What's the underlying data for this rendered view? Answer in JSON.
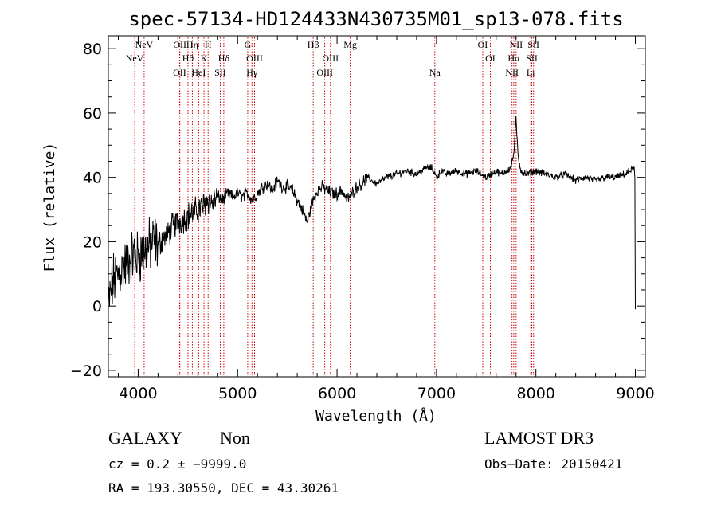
{
  "chart_data": {
    "type": "line",
    "title": "spec-57134-HD124433N430735M01_sp13-078.fits",
    "xlabel": "Wavelength (Å)",
    "ylabel": "Flux (relative)",
    "xlim": [
      3700,
      9100
    ],
    "ylim": [
      -22,
      84
    ],
    "x_ticks": [
      4000,
      5000,
      6000,
      7000,
      8000,
      9000
    ],
    "x_tick_labels": [
      "4000",
      "5000",
      "6000",
      "7000",
      "8000",
      "9000"
    ],
    "y_ticks": [
      -20,
      0,
      20,
      40,
      60,
      80
    ],
    "y_tick_labels": [
      "−20",
      "0",
      "20",
      "40",
      "60",
      "80"
    ],
    "series": [
      {
        "name": "spectrum",
        "x": [
          3700,
          3750,
          3800,
          3850,
          3900,
          3950,
          4000,
          4050,
          4100,
          4150,
          4200,
          4250,
          4300,
          4350,
          4400,
          4450,
          4500,
          4550,
          4600,
          4650,
          4700,
          4750,
          4800,
          4850,
          4900,
          4950,
          5000,
          5050,
          5100,
          5150,
          5200,
          5250,
          5300,
          5350,
          5400,
          5450,
          5500,
          5550,
          5600,
          5650,
          5700,
          5750,
          5800,
          5850,
          5900,
          5950,
          6000,
          6050,
          6100,
          6150,
          6200,
          6250,
          6300,
          6350,
          6400,
          6500,
          6600,
          6700,
          6800,
          6900,
          6950,
          7000,
          7050,
          7100,
          7200,
          7300,
          7400,
          7500,
          7550,
          7600,
          7650,
          7700,
          7750,
          7780,
          7800,
          7820,
          7850,
          7900,
          8000,
          8100,
          8200,
          8300,
          8400,
          8500,
          8600,
          8700,
          8800,
          8900,
          8950,
          8990,
          9000
        ],
        "values": [
          0,
          8,
          10,
          12,
          14,
          16,
          15,
          17,
          18,
          20,
          19,
          21,
          22,
          25,
          26,
          27,
          28,
          29,
          30,
          31,
          33,
          32,
          34,
          33,
          35,
          34,
          35,
          34,
          35,
          33,
          35,
          37,
          38,
          36,
          39,
          37,
          37,
          36,
          33,
          30,
          26,
          32,
          36,
          37,
          36,
          35,
          35,
          36,
          33,
          35,
          37,
          38,
          40,
          39,
          38,
          40,
          41,
          42,
          41,
          43,
          43,
          40,
          42,
          41,
          42,
          41,
          42,
          40,
          41,
          42,
          41,
          42,
          43,
          48,
          58,
          47,
          42,
          41,
          42,
          41,
          40,
          41,
          39,
          40,
          39,
          40,
          40,
          41,
          42,
          43,
          -1
        ]
      }
    ],
    "emission_lines": [
      {
        "label": "NeV",
        "wl": 3346,
        "row": 1
      },
      {
        "label": "NeV",
        "wl": 3426,
        "row": 0
      },
      {
        "label": "OII",
        "wl": 3727,
        "row": 2
      },
      {
        "label": "OII",
        "wl": 3729,
        "row": 0
      },
      {
        "label": "Hθ",
        "wl": 3798,
        "row": 1
      },
      {
        "label": "Hη",
        "wl": 3835,
        "row": 0
      },
      {
        "label": "HeI",
        "wl": 3889,
        "row": 2
      },
      {
        "label": "K",
        "wl": 3934,
        "row": 1
      },
      {
        "label": "H",
        "wl": 3969,
        "row": 0
      },
      {
        "label": "SII",
        "wl": 4072,
        "row": 2
      },
      {
        "label": "Hδ",
        "wl": 4102,
        "row": 1
      },
      {
        "label": "G",
        "wl": 4305,
        "row": 0
      },
      {
        "label": "Hγ",
        "wl": 4341,
        "row": 2
      },
      {
        "label": "OIII",
        "wl": 4363,
        "row": 1
      },
      {
        "label": "Hβ",
        "wl": 4861,
        "row": 0
      },
      {
        "label": "OIII",
        "wl": 4959,
        "row": 2
      },
      {
        "label": "OIII",
        "wl": 5007,
        "row": 1
      },
      {
        "label": "Mg",
        "wl": 5175,
        "row": 0
      },
      {
        "label": "Na",
        "wl": 5893,
        "row": 2
      },
      {
        "label": "OI",
        "wl": 6300,
        "row": 0
      },
      {
        "label": "OI",
        "wl": 6364,
        "row": 1
      },
      {
        "label": "NII",
        "wl": 6548,
        "row": 2
      },
      {
        "label": "Hα",
        "wl": 6563,
        "row": 1
      },
      {
        "label": "NII",
        "wl": 6583,
        "row": 0
      },
      {
        "label": "Li",
        "wl": 6707,
        "row": 2
      },
      {
        "label": "SII",
        "wl": 6716,
        "row": 1
      },
      {
        "label": "SII",
        "wl": 6731,
        "row": 0
      }
    ],
    "redshift_factor": 1.185
  },
  "info": {
    "class": "GALAXY",
    "subclass": "Non",
    "survey": "LAMOST DR3",
    "cz": "cz = 0.2 ± −9999.0",
    "obs_date": "Obs−Date: 20150421",
    "coords": "RA = 193.30550, DEC =  43.30261"
  },
  "colors": {
    "spectrum": "#000000",
    "line_markers": "#cc0000",
    "axes": "#000000"
  }
}
